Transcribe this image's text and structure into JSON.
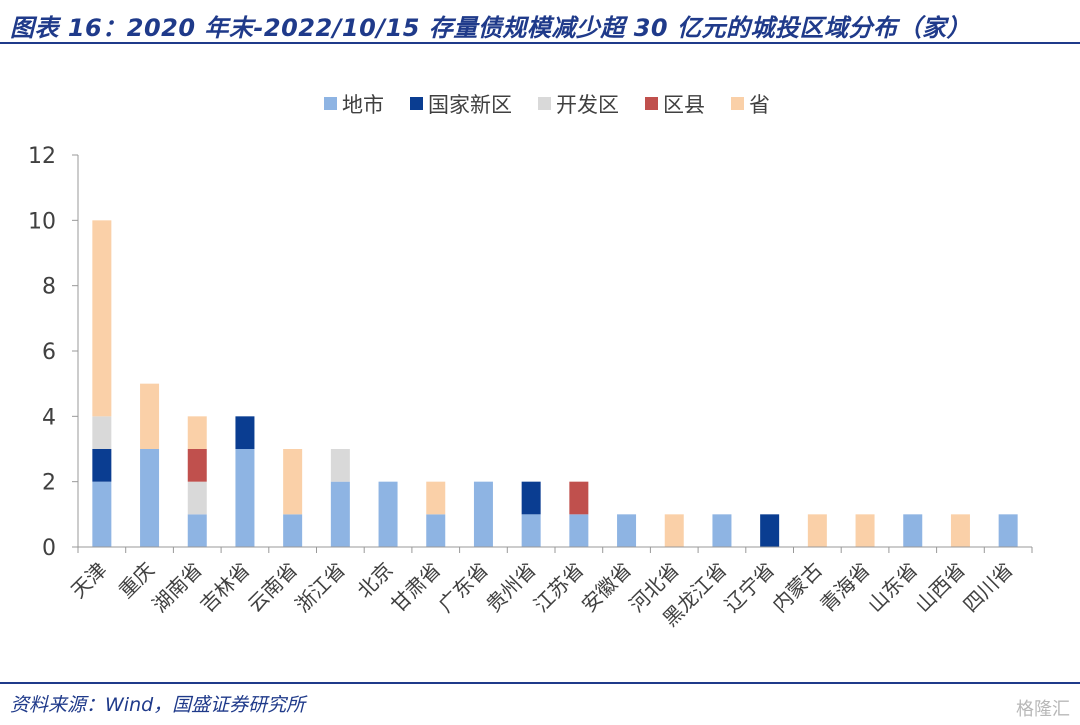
{
  "title": "图表 16：2020 年末-2022/10/15 存量债规模减少超 30 亿元的城投区域分布（家）",
  "source": "资料来源：Wind，国盛证券研究所",
  "watermark": "格隆汇",
  "chart_data": {
    "type": "bar",
    "stacked": true,
    "categories": [
      "天津",
      "重庆",
      "湖南省",
      "吉林省",
      "云南省",
      "浙江省",
      "北京",
      "甘肃省",
      "广东省",
      "贵州省",
      "江苏省",
      "安徽省",
      "河北省",
      "黑龙江省",
      "辽宁省",
      "内蒙古",
      "青海省",
      "山东省",
      "山西省",
      "四川省"
    ],
    "series": [
      {
        "name": "地市",
        "color": "#8eb4e3",
        "values": [
          2,
          3,
          1,
          3,
          1,
          2,
          2,
          1,
          2,
          1,
          1,
          1,
          0,
          1,
          0,
          0,
          0,
          1,
          0,
          1
        ]
      },
      {
        "name": "国家新区",
        "color": "#0a3d91",
        "values": [
          1,
          0,
          0,
          1,
          0,
          0,
          0,
          0,
          0,
          1,
          0,
          0,
          0,
          0,
          1,
          0,
          0,
          0,
          0,
          0
        ]
      },
      {
        "name": "开发区",
        "color": "#d9d9d9",
        "values": [
          1,
          0,
          1,
          0,
          0,
          1,
          0,
          0,
          0,
          0,
          0,
          0,
          0,
          0,
          0,
          0,
          0,
          0,
          0,
          0
        ]
      },
      {
        "name": "区县",
        "color": "#c0504d",
        "values": [
          0,
          0,
          1,
          0,
          0,
          0,
          0,
          0,
          0,
          0,
          1,
          0,
          0,
          0,
          0,
          0,
          0,
          0,
          0,
          0
        ]
      },
      {
        "name": "省",
        "color": "#fad0a8",
        "values": [
          6,
          2,
          1,
          0,
          2,
          0,
          0,
          1,
          0,
          0,
          0,
          0,
          1,
          0,
          0,
          1,
          1,
          0,
          1,
          0
        ]
      }
    ],
    "ylim": [
      0,
      12
    ],
    "yticks": [
      0,
      2,
      4,
      6,
      8,
      10,
      12
    ],
    "legend_position": "top-center",
    "grid": false
  }
}
